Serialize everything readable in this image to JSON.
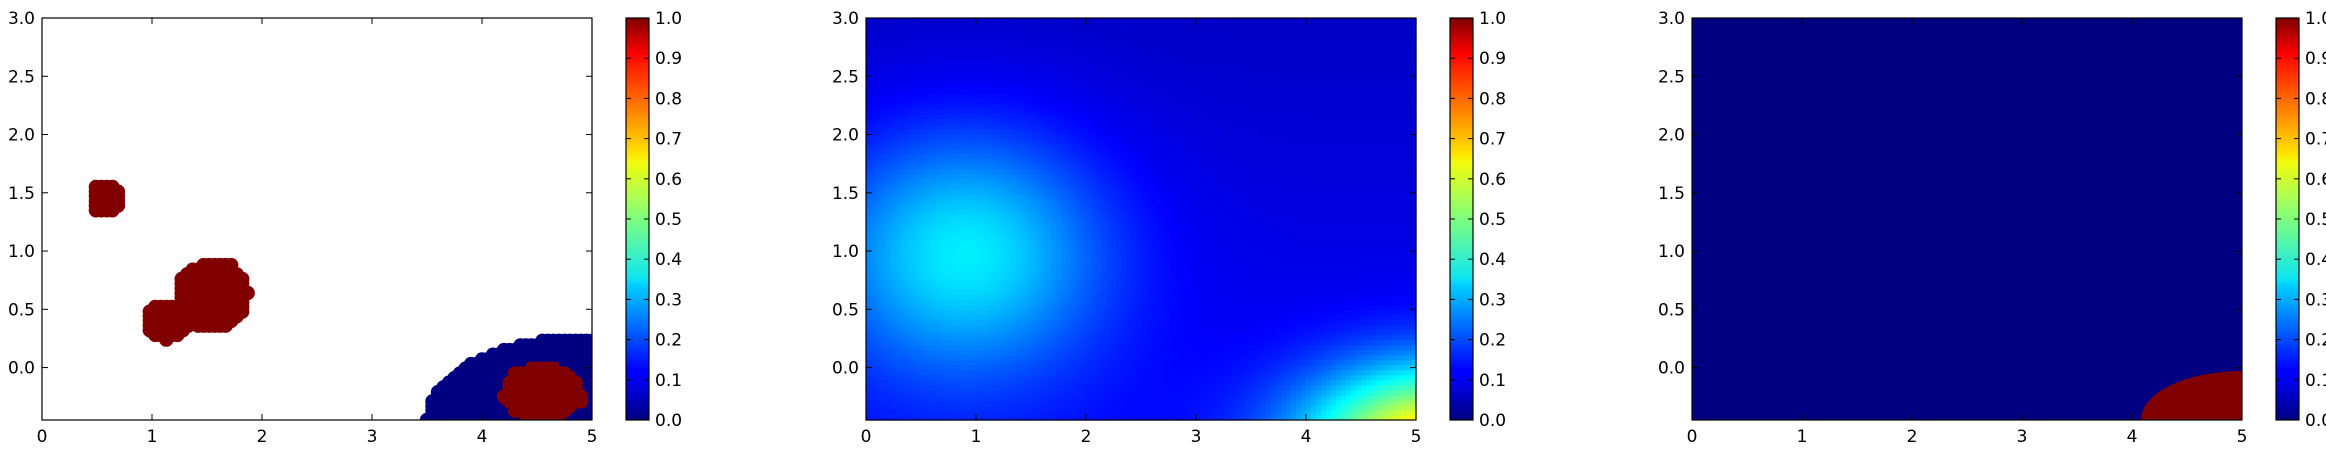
{
  "chart_data": [
    {
      "type": "scatter",
      "xlim": [
        0,
        5
      ],
      "ylim": [
        -0.45,
        3.0
      ],
      "xticks": [
        0,
        1,
        2,
        3,
        4,
        5
      ],
      "yticks": [
        0.0,
        0.5,
        1.0,
        1.5,
        2.0,
        2.5,
        3.0
      ],
      "colorbar": {
        "vmin": 0.0,
        "vmax": 1.0,
        "ticks": [
          0.0,
          0.1,
          0.2,
          0.3,
          0.4,
          0.5,
          0.6,
          0.7,
          0.8,
          0.9,
          1.0
        ]
      },
      "clusters": [
        {
          "value": 1.0,
          "shape": "blob",
          "center": [
            0.58,
            1.45
          ],
          "radius": [
            0.14,
            0.14
          ]
        },
        {
          "value": 1.0,
          "shape": "blob",
          "center": [
            1.55,
            0.62
          ],
          "radius": [
            0.33,
            0.3
          ]
        },
        {
          "value": 1.0,
          "shape": "blob",
          "center": [
            1.15,
            0.4
          ],
          "radius": [
            0.22,
            0.16
          ]
        },
        {
          "value": 0.0,
          "shape": "wedge",
          "corner": [
            5.0,
            -0.45
          ],
          "radius": [
            1.5,
            0.72
          ]
        },
        {
          "value": 1.0,
          "shape": "blob",
          "center": [
            4.55,
            -0.22
          ],
          "radius": [
            0.35,
            0.23
          ]
        }
      ]
    },
    {
      "type": "heatmap",
      "xlim": [
        0,
        5
      ],
      "ylim": [
        -0.45,
        3.0
      ],
      "xticks": [
        0,
        1,
        2,
        3,
        4,
        5
      ],
      "yticks": [
        0.0,
        0.5,
        1.0,
        1.5,
        2.0,
        2.5,
        3.0
      ],
      "colorbar": {
        "vmin": 0.0,
        "vmax": 1.0,
        "ticks": [
          0.0,
          0.1,
          0.2,
          0.3,
          0.4,
          0.5,
          0.6,
          0.7,
          0.8,
          0.9,
          1.0
        ]
      },
      "field": {
        "base": 0.12,
        "bumps": [
          {
            "center": [
              0.9,
              1.0
            ],
            "amplitude": 0.26,
            "sigma": [
              0.9,
              0.75
            ]
          },
          {
            "center": [
              5.2,
              -0.7
            ],
            "amplitude": 0.6,
            "sigma": [
              0.85,
              0.5
            ]
          }
        ]
      }
    },
    {
      "type": "heatmap",
      "xlim": [
        0,
        5
      ],
      "ylim": [
        -0.45,
        3.0
      ],
      "xticks": [
        0,
        1,
        2,
        3,
        4,
        5
      ],
      "yticks": [
        0.0,
        0.5,
        1.0,
        1.5,
        2.0,
        2.5,
        3.0
      ],
      "colorbar": {
        "vmin": 0.0,
        "vmax": 1.0,
        "ticks": [
          0.0,
          0.1,
          0.2,
          0.3,
          0.4,
          0.5,
          0.6,
          0.7,
          0.8,
          0.9,
          1.0
        ]
      },
      "field": {
        "background": 0.0,
        "region": {
          "value": 1.0,
          "corner": [
            5.0,
            -0.45
          ],
          "radius": [
            0.92,
            0.42
          ]
        }
      }
    }
  ]
}
